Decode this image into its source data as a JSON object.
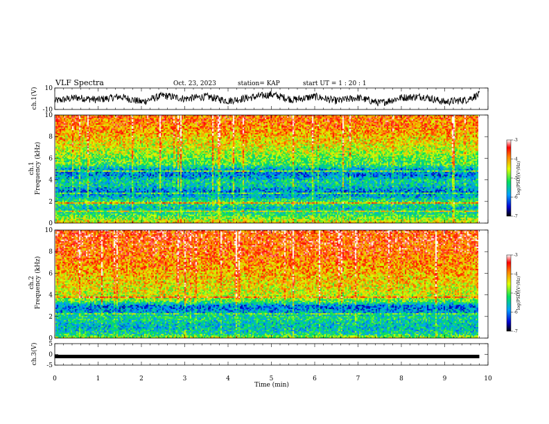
{
  "header": {
    "title": "VLF Spectra",
    "date": "Oct. 23, 2023",
    "station": "station= KAP",
    "start": "start  UT =   1 : 20 : 1"
  },
  "chart_data": [
    {
      "type": "line",
      "title": "",
      "ylabel": "ch.1(V)",
      "ylim": [
        -10,
        10
      ],
      "yticks": [
        "10",
        "-10"
      ],
      "x": [
        0.0,
        0.5,
        1.0,
        1.5,
        2.0,
        2.5,
        3.0,
        3.5,
        4.0,
        4.5,
        5.0,
        5.5,
        6.0,
        6.5,
        7.0,
        7.5,
        8.0,
        8.5,
        9.0,
        9.5,
        9.8
      ],
      "series": [
        {
          "values": [
            -2,
            1,
            -1,
            2,
            -3,
            3,
            0,
            2,
            -2,
            1,
            4,
            -1,
            2,
            -2,
            1,
            -4,
            1,
            2,
            -3,
            -1,
            4
          ]
        }
      ]
    },
    {
      "type": "heatmap",
      "ylabel": "ch.1  Frequency (kHz)",
      "ylim": [
        0,
        10
      ],
      "yticks": [
        "0",
        "2",
        "4",
        "6",
        "8",
        "10"
      ],
      "colorbar": {
        "label": "log(PSD)(V²/Hz)",
        "range": [
          -7,
          -3
        ],
        "ticks": [
          "-3",
          "-4",
          "-5",
          "-6",
          "-7"
        ]
      },
      "profile_freq_khz": [
        0,
        0.5,
        1,
        1.5,
        2,
        2.5,
        3,
        3.5,
        4,
        4.5,
        5,
        5.5,
        6,
        6.5,
        7,
        7.5,
        8,
        8.5,
        9,
        9.5,
        10
      ],
      "profile_logpsd": [
        -4.2,
        -4.8,
        -5.3,
        -5.6,
        -5.0,
        -5.7,
        -6.0,
        -5.5,
        -5.4,
        -6.0,
        -5.8,
        -5.0,
        -4.9,
        -4.7,
        -4.5,
        -4.3,
        -4.2,
        -4.0,
        -3.9,
        -3.8,
        -3.8
      ]
    },
    {
      "type": "heatmap",
      "ylabel": "ch.2  Frequency (kHz)",
      "ylim": [
        0,
        10
      ],
      "yticks": [
        "0",
        "2",
        "4",
        "6",
        "8",
        "10"
      ],
      "colorbar": {
        "label": "log(PSD)(V²/Hz)",
        "range": [
          -7,
          -3
        ],
        "ticks": [
          "-3",
          "-4",
          "-5",
          "-6",
          "-7"
        ]
      },
      "profile_freq_khz": [
        0,
        0.5,
        1,
        1.5,
        2,
        2.5,
        3,
        3.5,
        4,
        4.5,
        5,
        5.5,
        6,
        6.5,
        7,
        7.5,
        8,
        8.5,
        9,
        9.5,
        10
      ],
      "profile_logpsd": [
        -4.5,
        -5.4,
        -5.6,
        -5.5,
        -5.3,
        -5.8,
        -6.1,
        -4.9,
        -4.5,
        -4.4,
        -4.3,
        -4.2,
        -4.1,
        -4.0,
        -3.9,
        -3.8,
        -3.7,
        -3.7,
        -3.6,
        -3.6,
        -3.6
      ]
    },
    {
      "type": "line",
      "ylabel": "ch.3(V)",
      "ylim": [
        -5,
        5
      ],
      "yticks": [
        "5",
        "0",
        "-5"
      ],
      "x": [
        0,
        9.8
      ],
      "series": [
        {
          "values": [
            -1,
            -1
          ]
        }
      ]
    }
  ],
  "xaxis": {
    "label": "Time (min)",
    "range": [
      0,
      10
    ],
    "ticks": [
      "0",
      "1",
      "2",
      "3",
      "4",
      "5",
      "6",
      "7",
      "8",
      "9",
      "10"
    ]
  }
}
